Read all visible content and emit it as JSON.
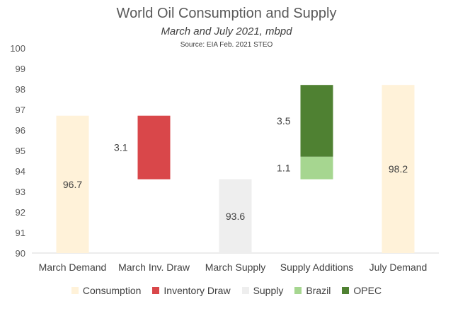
{
  "chart_data": {
    "type": "bar",
    "subtype": "waterfall",
    "title": "World Oil Consumption and Supply",
    "subtitle": "March and July 2021, mbpd",
    "source": "Source: EIA Feb. 2021 STEO",
    "ylim": [
      90,
      100
    ],
    "yticks": [
      "90",
      "91",
      "92",
      "93",
      "94",
      "95",
      "96",
      "97",
      "98",
      "99",
      "100"
    ],
    "categories": [
      "March Demand",
      "March Inv. Draw",
      "March Supply",
      "Supply Additions",
      "July Demand"
    ],
    "bars": [
      {
        "category": "March Demand",
        "series": "Consumption",
        "bottom": 90,
        "top": 96.7,
        "label": "96.7",
        "label_pos": "inside"
      },
      {
        "category": "March Inv. Draw",
        "series": "Inventory Draw",
        "bottom": 93.6,
        "top": 96.7,
        "label": "3.1",
        "label_pos": "left"
      },
      {
        "category": "March Supply",
        "series": "Supply",
        "bottom": 90,
        "top": 93.6,
        "label": "93.6",
        "label_pos": "inside"
      },
      {
        "category": "Supply Additions",
        "series": "Brazil",
        "bottom": 93.6,
        "top": 94.7,
        "label": "1.1",
        "label_pos": "left"
      },
      {
        "category": "Supply Additions",
        "series": "OPEC",
        "bottom": 94.7,
        "top": 98.2,
        "label": "3.5",
        "label_pos": "left"
      },
      {
        "category": "July Demand",
        "series": "Consumption",
        "bottom": 90,
        "top": 98.2,
        "label": "98.2",
        "label_pos": "inside"
      }
    ],
    "legend": [
      {
        "name": "Consumption",
        "color": "#FFF2D9"
      },
      {
        "name": "Inventory Draw",
        "color": "#D9474A"
      },
      {
        "name": "Supply",
        "color": "#EEEEEE"
      },
      {
        "name": "Brazil",
        "color": "#A6D690"
      },
      {
        "name": "OPEC",
        "color": "#4F8132"
      }
    ],
    "legend_position": "bottom",
    "grid": false
  }
}
